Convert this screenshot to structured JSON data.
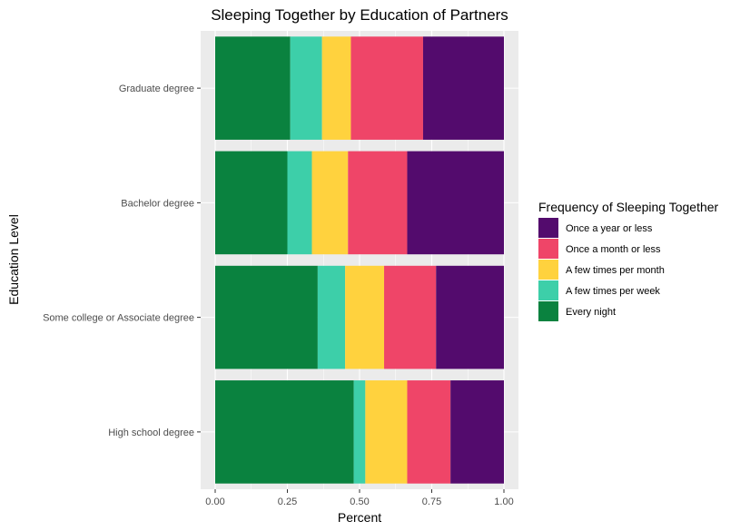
{
  "chart_data": {
    "type": "bar",
    "orientation": "horizontal",
    "stacked": true,
    "title": "Sleeping Together by Education of Partners",
    "xlabel": "Percent",
    "ylabel": "Education Level",
    "xlim": [
      0,
      1
    ],
    "x_ticks": [
      "0.00",
      "0.25",
      "0.50",
      "0.75",
      "1.00"
    ],
    "grid": true,
    "categories": [
      "Graduate degree",
      "Bachelor degree",
      "Some college or Associate degree",
      "High school degree"
    ],
    "series": [
      {
        "name": "Every night",
        "color": "#0A823F",
        "values": [
          0.26,
          0.25,
          0.355,
          0.48
        ]
      },
      {
        "name": "A few times per week",
        "color": "#3DCFA9",
        "values": [
          0.11,
          0.085,
          0.095,
          0.04
        ]
      },
      {
        "name": "A few times per month",
        "color": "#FFD23E",
        "values": [
          0.1,
          0.125,
          0.135,
          0.145
        ]
      },
      {
        "name": "Once a month or less",
        "color": "#EF4568",
        "values": [
          0.25,
          0.205,
          0.18,
          0.15
        ]
      },
      {
        "name": "Once a year or less",
        "color": "#530B6D",
        "values": [
          0.28,
          0.335,
          0.235,
          0.185
        ]
      }
    ],
    "legend": {
      "title": "Frequency of Sleeping Together",
      "position": "right",
      "order": [
        "Once a year or less",
        "Once a month or less",
        "A few times per month",
        "A few times per week",
        "Every night"
      ]
    },
    "panel_color": "#EBEBEB",
    "grid_color": "#FFFFFF"
  }
}
